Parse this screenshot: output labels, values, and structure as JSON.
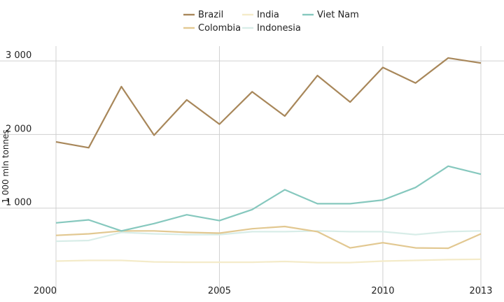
{
  "chart_data": {
    "type": "line",
    "title": "",
    "xlabel": "",
    "ylabel": "1 000 mln tonnes",
    "x": [
      2000,
      2001,
      2002,
      2003,
      2004,
      2005,
      2006,
      2007,
      2008,
      2009,
      2010,
      2011,
      2012,
      2013
    ],
    "xlim": [
      2000,
      2013
    ],
    "ylim": [
      0,
      3200
    ],
    "x_ticks": [
      2000,
      2005,
      2010,
      2013
    ],
    "x_tick_labels": [
      "2000",
      "2005",
      "2010",
      "2013"
    ],
    "y_ticks": [
      1000,
      2000,
      3000
    ],
    "y_tick_labels": [
      "1 000",
      "2 000",
      "3 000"
    ],
    "grid": true,
    "legend_position": "top-center",
    "series": [
      {
        "name": "Brazil",
        "color": "#A8875A",
        "values": [
          1900,
          1820,
          2650,
          1990,
          2470,
          2140,
          2580,
          2250,
          2800,
          2440,
          2910,
          2700,
          3040,
          2970
        ]
      },
      {
        "name": "Colombia",
        "color": "#E2C891",
        "values": [
          630,
          650,
          690,
          690,
          670,
          660,
          720,
          750,
          680,
          460,
          530,
          460,
          455,
          650
        ]
      },
      {
        "name": "India",
        "color": "#F4EBC9",
        "values": [
          280,
          290,
          290,
          270,
          265,
          265,
          265,
          275,
          260,
          260,
          280,
          290,
          300,
          305
        ]
      },
      {
        "name": "Indonesia",
        "color": "#D8EDE8",
        "values": [
          550,
          560,
          670,
          650,
          640,
          640,
          680,
          680,
          690,
          680,
          680,
          640,
          680,
          690
        ]
      },
      {
        "name": "Viet Nam",
        "color": "#86C8BE",
        "values": [
          800,
          840,
          690,
          790,
          910,
          830,
          980,
          1250,
          1060,
          1060,
          1110,
          1280,
          1570,
          1460
        ]
      }
    ]
  }
}
